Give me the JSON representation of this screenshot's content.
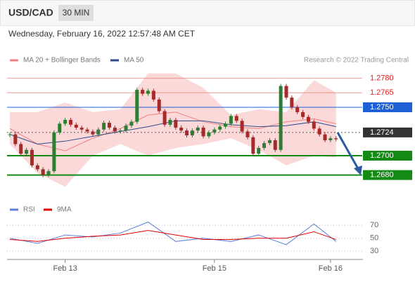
{
  "header": {
    "symbol": "USD/CAD",
    "timeframe": "30 MIN",
    "datetime": "Wednesday, February 16, 2022 12:57:48 AM CET",
    "credit": "Research © 2022 Trading Central"
  },
  "chart_data": [
    {
      "type": "candlestick",
      "series": [
        {
          "color_up": "#2e7d32",
          "color_down": "#a52a2a",
          "values": [
            1.2722,
            1.2712,
            1.2702,
            1.2706,
            1.269,
            1.2686,
            1.268,
            1.2684,
            1.2724,
            1.2733,
            1.2737,
            1.2732,
            1.2729,
            1.2727,
            1.2725,
            1.2722,
            1.2727,
            1.2734,
            1.2729,
            1.2725,
            1.2726,
            1.2731,
            1.2735,
            1.2768,
            1.2764,
            1.2767,
            1.2758,
            1.2746,
            1.2732,
            1.2737,
            1.2729,
            1.2726,
            1.2721,
            1.2726,
            1.2729,
            1.272,
            1.2724,
            1.2727,
            1.273,
            1.2733,
            1.2741,
            1.2736,
            1.2725,
            1.2719,
            1.2702,
            1.2708,
            1.2713,
            1.2716,
            1.2706,
            1.2772,
            1.276,
            1.275,
            1.2745,
            1.274,
            1.2735,
            1.2728,
            1.2722,
            1.2716,
            1.2718,
            1.2717
          ]
        }
      ],
      "lines": [
        {
          "name": "MA 20 + Bollinger Bands",
          "color": "#f08080",
          "x": [
            0,
            5,
            10,
            15,
            20,
            25,
            30,
            35,
            40,
            45,
            50,
            55,
            59
          ],
          "values": [
            1.2728,
            1.2712,
            1.2705,
            1.2718,
            1.2728,
            1.2742,
            1.2745,
            1.2735,
            1.273,
            1.2728,
            1.2735,
            1.2738,
            1.2733
          ]
        },
        {
          "name": "MA 50",
          "color": "#2c4a8a",
          "x": [
            0,
            5,
            10,
            15,
            20,
            25,
            30,
            35,
            40,
            45,
            50,
            55,
            59
          ],
          "values": [
            1.2722,
            1.2712,
            1.2715,
            1.272,
            1.2725,
            1.273,
            1.2736,
            1.2736,
            1.2732,
            1.273,
            1.2731,
            1.2735,
            1.273
          ]
        }
      ],
      "band": {
        "color": "#fbd9d9",
        "x": [
          0,
          5,
          10,
          15,
          20,
          25,
          30,
          35,
          40,
          45,
          50,
          55,
          59
        ],
        "upper": [
          1.2745,
          1.2745,
          1.2755,
          1.2745,
          1.2748,
          1.2785,
          1.2785,
          1.277,
          1.2742,
          1.2748,
          1.2745,
          1.2778,
          1.2765
        ],
        "lower": [
          1.2712,
          1.2682,
          1.2668,
          1.27,
          1.2712,
          1.27,
          1.2708,
          1.2712,
          1.2718,
          1.2706,
          1.269,
          1.27,
          1.2698
        ]
      },
      "levels": [
        {
          "value": 1.278,
          "label": "1.2780",
          "color": "#e8766f",
          "style": "text"
        },
        {
          "value": 1.2765,
          "label": "1.2765",
          "color": "#e8766f",
          "style": "text"
        },
        {
          "value": 1.275,
          "label": "1.2750",
          "color": "#1f5fd6",
          "style": "box"
        },
        {
          "value": 1.2724,
          "label": "1.2724",
          "color": "#333333",
          "style": "dotted"
        },
        {
          "value": 1.27,
          "label": "1.2700",
          "color": "#138a13",
          "style": "box"
        },
        {
          "value": 1.268,
          "label": "1.2680",
          "color": "#138a13",
          "style": "box"
        }
      ],
      "ylim": [
        1.2658,
        1.2792
      ]
    },
    {
      "type": "line",
      "series": [
        {
          "name": "RSI",
          "color": "#5b7fd6",
          "x": [
            0,
            5,
            10,
            15,
            20,
            25,
            30,
            35,
            40,
            45,
            50,
            55,
            59
          ],
          "values": [
            50,
            42,
            55,
            52,
            58,
            75,
            45,
            50,
            45,
            55,
            40,
            72,
            45
          ]
        },
        {
          "name": "9MA",
          "color": "#e00000",
          "x": [
            0,
            5,
            10,
            15,
            20,
            25,
            30,
            35,
            40,
            45,
            50,
            55,
            59
          ],
          "values": [
            48,
            45,
            50,
            53,
            55,
            62,
            55,
            48,
            48,
            50,
            50,
            60,
            48
          ]
        }
      ],
      "categories": [
        null,
        null,
        null,
        null,
        null,
        null,
        null,
        null,
        null,
        null,
        "Feb 13",
        null,
        null,
        null,
        null,
        null,
        null,
        null,
        null,
        null,
        null,
        null,
        null,
        null,
        null,
        null,
        null,
        null,
        null,
        null,
        null,
        null,
        null,
        null,
        null,
        null,
        null,
        "Feb 15",
        null,
        null,
        null,
        null,
        null,
        null,
        null,
        null,
        null,
        null,
        null,
        null,
        null,
        null,
        null,
        null,
        null,
        null,
        null,
        null,
        "Feb 16",
        null
      ],
      "ylim": [
        15,
        80
      ],
      "yticks": [
        30,
        50,
        70
      ],
      "grid": true
    }
  ]
}
